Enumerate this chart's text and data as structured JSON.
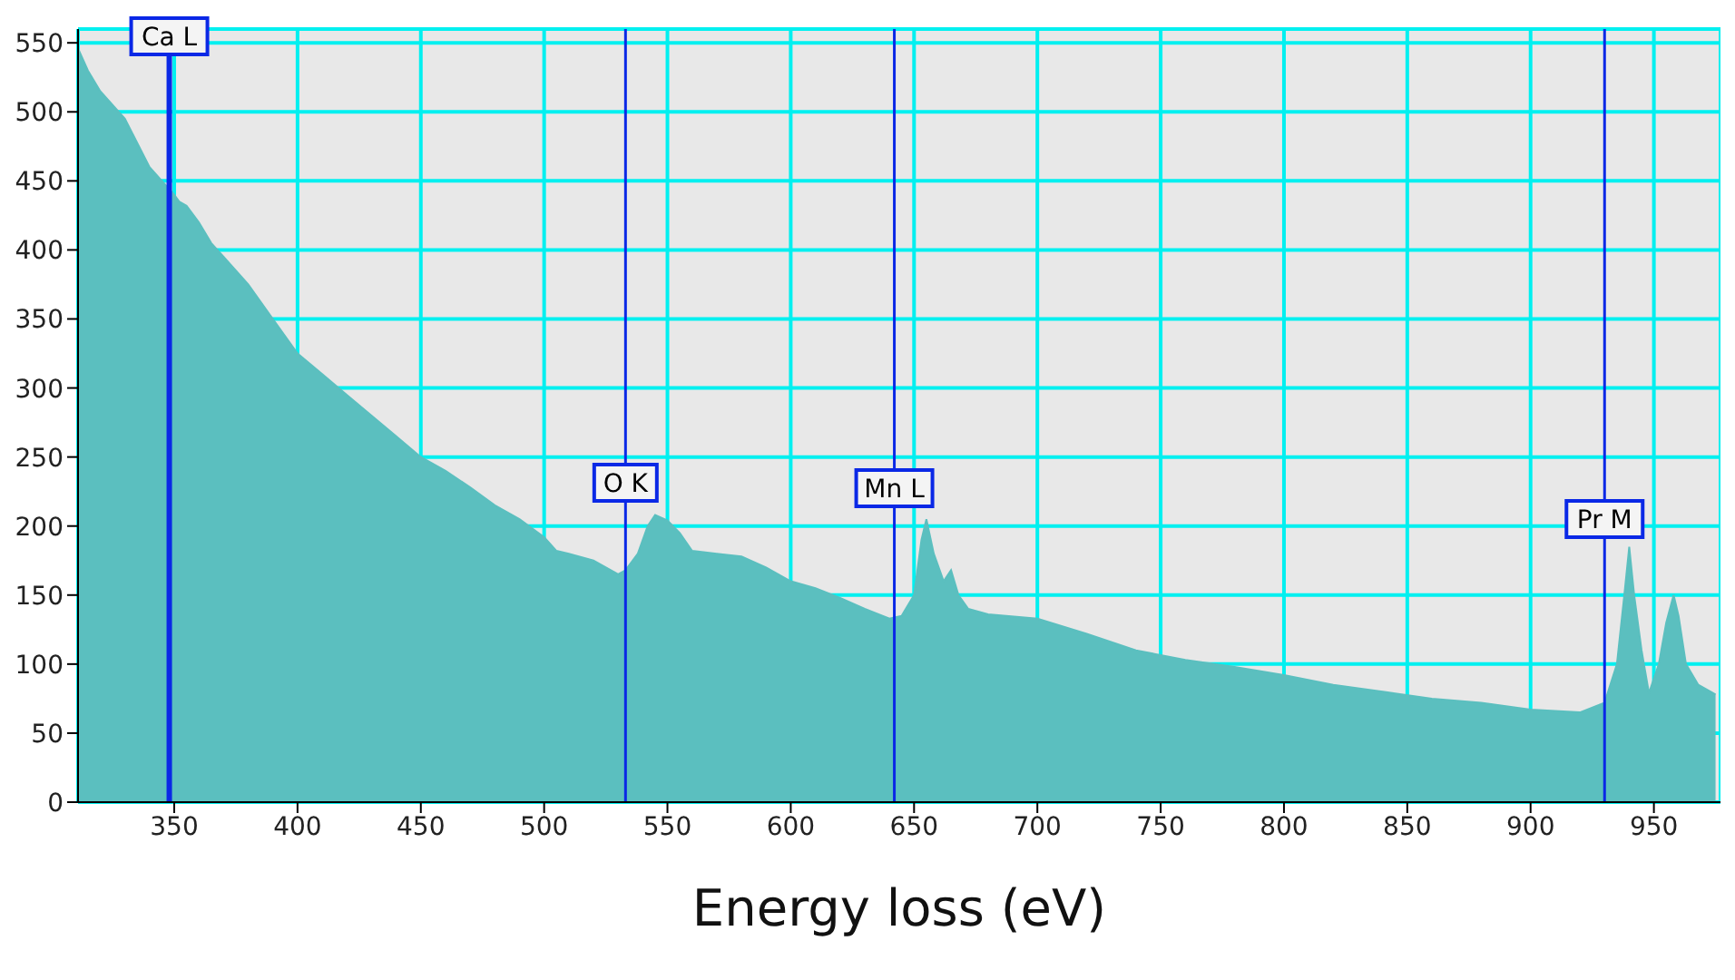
{
  "chart_data": {
    "type": "area",
    "xlabel": "Energy loss (eV)",
    "color": "#5bbfbf",
    "grid": true,
    "legend": false,
    "x": [
      311,
      315,
      320,
      330,
      340,
      345,
      350,
      352,
      355,
      360,
      365,
      370,
      380,
      390,
      400,
      410,
      420,
      430,
      440,
      450,
      460,
      470,
      480,
      490,
      500,
      505,
      510,
      520,
      530,
      533,
      538,
      542,
      545,
      550,
      555,
      560,
      570,
      580,
      590,
      600,
      610,
      620,
      630,
      640,
      645,
      650,
      653,
      655,
      658,
      662,
      665,
      668,
      672,
      680,
      700,
      720,
      740,
      760,
      780,
      800,
      820,
      840,
      860,
      880,
      900,
      920,
      930,
      935,
      938,
      940,
      942,
      945,
      948,
      952,
      955,
      958,
      960,
      963,
      968,
      975
    ],
    "values": [
      546,
      530,
      515,
      495,
      460,
      450,
      440,
      435,
      432,
      420,
      405,
      395,
      375,
      350,
      325,
      310,
      295,
      280,
      265,
      250,
      240,
      228,
      215,
      205,
      192,
      182,
      180,
      175,
      165,
      168,
      180,
      200,
      208,
      204,
      195,
      182,
      180,
      178,
      170,
      160,
      155,
      148,
      140,
      133,
      135,
      150,
      190,
      205,
      180,
      160,
      168,
      150,
      140,
      136,
      133,
      122,
      110,
      103,
      98,
      92,
      85,
      80,
      75,
      72,
      67,
      65,
      72,
      100,
      150,
      185,
      150,
      110,
      79,
      100,
      130,
      150,
      135,
      100,
      85,
      78
    ],
    "xlim": [
      311,
      977
    ],
    "xticks": [
      350,
      400,
      450,
      500,
      550,
      600,
      650,
      700,
      750,
      800,
      850,
      900,
      950
    ],
    "ylim": [
      0,
      560
    ],
    "yticks": [
      0,
      50,
      100,
      150,
      200,
      250,
      300,
      350,
      400,
      450,
      500,
      550
    ],
    "ref_lines": [
      {
        "axis": "x",
        "value": 348,
        "label": "Ca L",
        "color": "#0a28e6"
      },
      {
        "axis": "x",
        "value": 533,
        "label": "O K",
        "color": "#0a28e6"
      },
      {
        "axis": "x",
        "value": 642,
        "label": "Mn L",
        "color": "#0a28e6"
      },
      {
        "axis": "x",
        "value": 930,
        "label": "Pr M",
        "color": "#0a28e6"
      }
    ]
  }
}
